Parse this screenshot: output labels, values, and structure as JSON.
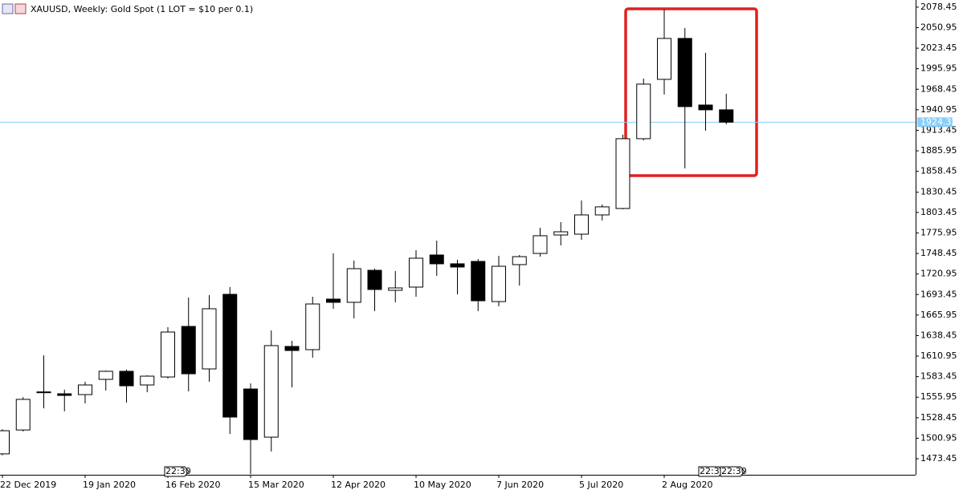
{
  "chart_data": {
    "type": "candlestick",
    "title": "XAUUSD, Weekly:  Gold Spot (1 LOT = $10 per 0.1)",
    "x": [
      "22 Dec 2019",
      null,
      null,
      null,
      "19 Jan 2020",
      null,
      null,
      null,
      "16 Feb 2020",
      null,
      null,
      null,
      "15 Mar 2020",
      null,
      null,
      null,
      "12 Apr 2020",
      null,
      null,
      null,
      "10 May 2020",
      null,
      null,
      null,
      "7 Jun 2020",
      null,
      null,
      null,
      "5 Jul 2020",
      null,
      null,
      null,
      "2 Aug 2020",
      null,
      null,
      null
    ],
    "open": [
      1480,
      1512,
      1562,
      1560.5,
      1559.4,
      1579.8,
      1590.6,
      1572.3,
      1583,
      1650.7,
      1593.8,
      1693.7,
      1566.9,
      1502.4,
      1623.9,
      1619.6,
      1687.3,
      1683,
      1725.9,
      1699.1,
      1703.4,
      1746.4,
      1734.6,
      1737.8,
      1684,
      1733.5,
      1748.5,
      1773.2,
      1774.3,
      1800.1,
      1808.7,
      1902.2,
      1981.7,
      2036.5,
      1947.3,
      1940.9
    ],
    "high": [
      1513,
      1556,
      1612,
      1566,
      1576.6,
      1591.6,
      1592.7,
      1585.2,
      1649.7,
      1689.4,
      1692.6,
      1703.4,
      1574.4,
      1645.4,
      1631.4,
      1690.5,
      1748.5,
      1738.9,
      1728.1,
      1724.9,
      1752.8,
      1765.7,
      1740,
      1741,
      1745.3,
      1746.4,
      1782.9,
      1790.4,
      1819.4,
      1814.1,
      1907.6,
      1982.8,
      2075.2,
      2050.5,
      2017.2,
      1962.4
    ],
    "low": [
      1478,
      1510,
      1541,
      1537,
      1547.6,
      1564.8,
      1548.7,
      1562.6,
      1580.9,
      1563.7,
      1576.6,
      1506.7,
      1453,
      1483.1,
      1569.1,
      1608.8,
      1674.4,
      1661.5,
      1671.2,
      1683,
      1690.5,
      1718.5,
      1693.7,
      1671.2,
      1677.6,
      1705.5,
      1744.2,
      1759.3,
      1766.8,
      1792.6,
      1807.6,
      1900,
      1961.3,
      1862.4,
      1912.9,
      1921.5
    ],
    "close": [
      1511,
      1553,
      1563,
      1558.3,
      1572.3,
      1590.6,
      1571.2,
      1584.1,
      1643.2,
      1587.3,
      1674.4,
      1529.3,
      1499.2,
      1625,
      1618.5,
      1680.8,
      1683,
      1728.1,
      1700.2,
      1702.3,
      1742.1,
      1734.6,
      1730.3,
      1685.1,
      1731.3,
      1744.2,
      1772.2,
      1777.5,
      1800.1,
      1810.9,
      1902.2,
      1975.3,
      2036.5,
      1945.2,
      1940.9,
      1924.32
    ],
    "ylim": [
      1452,
      2088
    ],
    "yticks": [
      1473.45,
      1500.95,
      1528.45,
      1555.95,
      1583.45,
      1610.95,
      1638.45,
      1665.95,
      1693.45,
      1720.95,
      1748.45,
      1775.95,
      1803.45,
      1830.45,
      1858.45,
      1885.95,
      1913.45,
      1940.95,
      1968.45,
      1995.95,
      2023.45,
      2050.95,
      2078.45
    ],
    "current_price": 1924.32,
    "time_markers": [
      "22:30",
      "22:30",
      "22:30"
    ]
  }
}
